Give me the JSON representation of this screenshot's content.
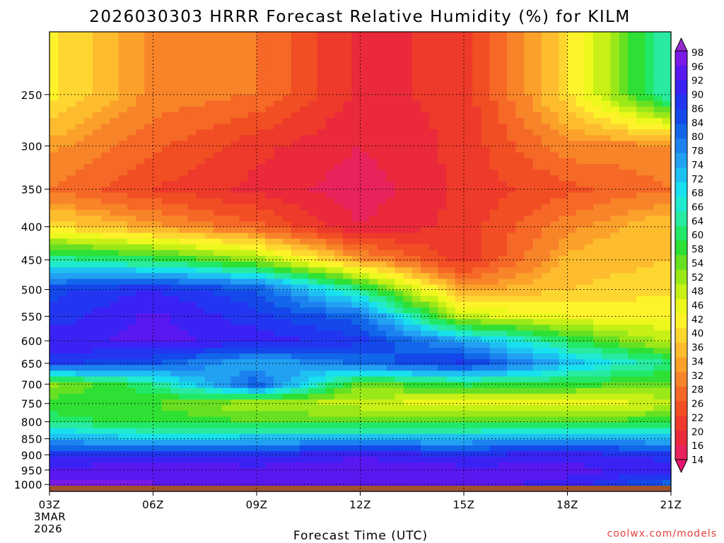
{
  "chart_data": {
    "type": "heatmap",
    "title": "2026030303 HRRR Forecast Relative Humidity (%) for KILM",
    "xlabel": "Forecast Time (UTC)",
    "ylabel": "",
    "x_ticks": [
      "03Z",
      "06Z",
      "09Z",
      "12Z",
      "15Z",
      "18Z",
      "21Z"
    ],
    "x_date_label": [
      "3MAR",
      "2026"
    ],
    "y_ticks": [
      250,
      300,
      350,
      400,
      450,
      500,
      550,
      600,
      650,
      700,
      750,
      800,
      850,
      900,
      950,
      1000
    ],
    "y_scale": "log-pressure (inverted)",
    "ylim": [
      1025,
      200
    ],
    "xlim_hours": [
      3,
      21
    ],
    "grid": "dotted",
    "colorbar_labels": [
      98,
      96,
      92,
      90,
      86,
      84,
      80,
      78,
      74,
      72,
      68,
      66,
      64,
      60,
      58,
      54,
      52,
      48,
      46,
      42,
      40,
      36,
      34,
      32,
      28,
      26,
      22,
      20,
      16,
      14
    ],
    "colorbar_colors": [
      "#9628d0",
      "#7a1ae6",
      "#5a18f0",
      "#3a22f5",
      "#2236f2",
      "#1448ea",
      "#1266ea",
      "#1c82f0",
      "#22a0f2",
      "#1ec0f2",
      "#18e0ee",
      "#20ead0",
      "#28eaa0",
      "#22e86a",
      "#2ee034",
      "#68e022",
      "#9ae818",
      "#c6f016",
      "#ecf81c",
      "#fef22a",
      "#fed630",
      "#fdbc2e",
      "#fba12a",
      "#f8842a",
      "#f66826",
      "#f24e24",
      "#ee3a2a",
      "#ea2a3a",
      "#e8225a",
      "#e4146e"
    ],
    "series": [
      {
        "x": [
          3,
          6,
          9,
          12,
          15,
          18,
          21
        ],
        "y": [
          250,
          300,
          350,
          400,
          450,
          500,
          550,
          600,
          650,
          700,
          750,
          800,
          850,
          900,
          950,
          1000
        ],
        "values": [
          [
            42,
            32,
            30,
            20,
            22,
            40,
            66
          ],
          [
            34,
            28,
            22,
            18,
            22,
            32,
            32
          ],
          [
            30,
            24,
            20,
            16,
            22,
            26,
            30
          ],
          [
            40,
            34,
            28,
            18,
            22,
            32,
            38
          ],
          [
            64,
            60,
            52,
            34,
            22,
            36,
            38
          ],
          [
            84,
            88,
            82,
            62,
            34,
            38,
            40
          ],
          [
            86,
            92,
            86,
            80,
            48,
            44,
            44
          ],
          [
            90,
            92,
            90,
            86,
            74,
            60,
            48
          ],
          [
            86,
            82,
            72,
            80,
            86,
            72,
            62
          ],
          [
            52,
            62,
            82,
            54,
            60,
            58,
            54
          ],
          [
            58,
            56,
            50,
            48,
            44,
            44,
            48
          ],
          [
            60,
            58,
            56,
            56,
            56,
            56,
            58
          ],
          [
            74,
            70,
            72,
            72,
            72,
            74,
            72
          ],
          [
            86,
            88,
            88,
            90,
            88,
            90,
            86
          ],
          [
            92,
            94,
            92,
            94,
            92,
            92,
            90
          ],
          [
            96,
            94,
            92,
            94,
            92,
            90,
            80
          ]
        ]
      }
    ],
    "ground_color": "#a0522d"
  },
  "credit": "coolwx.com/models"
}
